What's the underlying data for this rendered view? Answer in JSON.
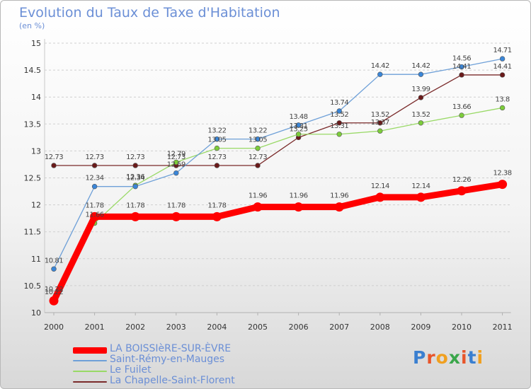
{
  "title": "Evolution du Taux de Taxe d'Habitation",
  "subtitle": "(en %)",
  "logo": {
    "text": "Proxiti",
    "letter_colors": [
      "#3a7fd0",
      "#e8552a",
      "#f0a020",
      "#3aa64a",
      "#e8552a",
      "#3a7fd0",
      "#f0a020"
    ]
  },
  "chart_data": {
    "type": "line",
    "x": [
      "2000",
      "2001",
      "2002",
      "2003",
      "2004",
      "2005",
      "2006",
      "2007",
      "2008",
      "2009",
      "2010",
      "2011"
    ],
    "ylim": [
      10,
      15
    ],
    "yticks": [
      "10",
      "10.5",
      "11",
      "11.5",
      "12",
      "12.5",
      "13",
      "13.5",
      "14",
      "14.5",
      "15"
    ],
    "grid": "horizontal dashed",
    "legend_position": "bottom-left",
    "series": [
      {
        "name": "LA BOISSIèRE-SUR-ÈVRE",
        "color": "#ff0000",
        "marker_color": "#ff0000",
        "emphasis": true,
        "values": [
          10.22,
          11.78,
          11.78,
          11.78,
          11.78,
          11.96,
          11.96,
          11.96,
          12.14,
          12.14,
          12.26,
          12.38
        ],
        "labels": [
          "10.22",
          "11.78",
          "11.78",
          "11.78",
          "11.78",
          "11.96",
          "11.96",
          "11.96",
          "12.14",
          "12.14",
          "12.26",
          "12.38"
        ]
      },
      {
        "name": "Saint-Rémy-en-Mauges",
        "color": "#6ea0d8",
        "marker_color": "#3a86d8",
        "emphasis": false,
        "values": [
          10.81,
          12.34,
          12.34,
          12.59,
          13.22,
          13.22,
          13.48,
          13.74,
          14.42,
          14.42,
          14.56,
          14.71
        ],
        "labels": [
          "10.81",
          "12.34",
          "12.34",
          "12.59",
          "13.22",
          "13.22",
          "13.48",
          "13.74",
          "14.42",
          "14.42",
          "14.56",
          "14.71"
        ]
      },
      {
        "name": "Le Fuilet",
        "color": "#99d966",
        "marker_color": "#7ccc3a",
        "emphasis": false,
        "values": [
          10.22,
          11.66,
          12.36,
          12.79,
          13.05,
          13.05,
          13.31,
          13.31,
          13.37,
          13.52,
          13.66,
          13.8
        ],
        "labels": [
          "10.22",
          "11.66",
          "12.36",
          "12.79",
          "13.05",
          "13.05",
          "13.31",
          "13.31",
          "13.37",
          "13.52",
          "13.66",
          "13.8"
        ]
      },
      {
        "name": "La Chapelle-Saint-Florent",
        "color": "#7a2a2a",
        "marker_color": "#6a1a1a",
        "emphasis": false,
        "values": [
          12.73,
          12.73,
          12.73,
          12.73,
          12.73,
          12.73,
          13.25,
          13.52,
          13.52,
          13.99,
          14.41,
          14.41
        ],
        "labels": [
          "12.73",
          "12.73",
          "12.73",
          "12.73",
          "12.73",
          "12.73",
          "13.25",
          "13.52",
          "13.52",
          "13.99",
          "14.41",
          "14.41"
        ]
      }
    ]
  }
}
